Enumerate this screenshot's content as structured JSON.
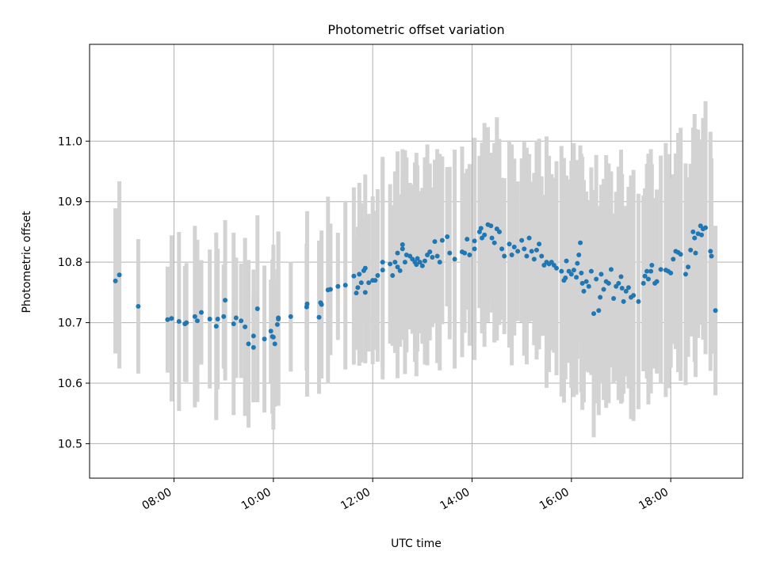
{
  "chart_data": {
    "type": "scatter",
    "title": "Photometric offset variation",
    "xlabel": "UTC time",
    "ylabel": "Photometric offset",
    "x_unit": "hours UTC",
    "xlim": [
      6.3,
      19.45
    ],
    "ylim": [
      10.443,
      11.16
    ],
    "x_ticks": [
      {
        "value": 8,
        "label": "08:00"
      },
      {
        "value": 10,
        "label": "10:00"
      },
      {
        "value": 12,
        "label": "12:00"
      },
      {
        "value": 14,
        "label": "14:00"
      },
      {
        "value": 16,
        "label": "16:00"
      },
      {
        "value": 18,
        "label": "18:00"
      }
    ],
    "y_ticks": [
      {
        "value": 10.5,
        "label": "10.5"
      },
      {
        "value": 10.6,
        "label": "10.6"
      },
      {
        "value": 10.7,
        "label": "10.7"
      },
      {
        "value": 10.8,
        "label": "10.8"
      },
      {
        "value": 10.9,
        "label": "10.9"
      },
      {
        "value": 11.0,
        "label": "11.0"
      }
    ],
    "grid": true,
    "colors": {
      "points": "#1f77b4",
      "errorbars": "#d3d3d3",
      "grid": "#b0b0b0"
    },
    "series": [
      {
        "points": [
          [
            6.82,
            10.769
          ],
          [
            6.9,
            10.779
          ],
          [
            7.28,
            10.727
          ],
          [
            7.87,
            10.705
          ],
          [
            7.95,
            10.707
          ],
          [
            8.1,
            10.702
          ],
          [
            8.22,
            10.698
          ],
          [
            8.25,
            10.7
          ],
          [
            8.42,
            10.71
          ],
          [
            8.47,
            10.703
          ],
          [
            8.55,
            10.717
          ],
          [
            8.72,
            10.706
          ],
          [
            8.85,
            10.694
          ],
          [
            8.88,
            10.706
          ],
          [
            9.0,
            10.71
          ],
          [
            9.03,
            10.737
          ],
          [
            9.2,
            10.698
          ],
          [
            9.25,
            10.708
          ],
          [
            9.35,
            10.703
          ],
          [
            9.43,
            10.693
          ],
          [
            9.5,
            10.665
          ],
          [
            9.6,
            10.659
          ],
          [
            9.6,
            10.678
          ],
          [
            9.68,
            10.723
          ],
          [
            9.82,
            10.673
          ],
          [
            9.95,
            10.686
          ],
          [
            9.98,
            10.677
          ],
          [
            10.0,
            10.676
          ],
          [
            10.03,
            10.665
          ],
          [
            10.08,
            10.697
          ],
          [
            10.1,
            10.706
          ],
          [
            10.1,
            10.708
          ],
          [
            10.35,
            10.71
          ],
          [
            10.67,
            10.726
          ],
          [
            10.68,
            10.731
          ],
          [
            10.92,
            10.709
          ],
          [
            10.95,
            10.733
          ],
          [
            10.97,
            10.73
          ],
          [
            11.1,
            10.754
          ],
          [
            11.15,
            10.755
          ],
          [
            11.3,
            10.76
          ],
          [
            11.45,
            10.762
          ],
          [
            11.62,
            10.777
          ],
          [
            11.67,
            10.749
          ],
          [
            11.7,
            10.758
          ],
          [
            11.73,
            10.78
          ],
          [
            11.77,
            10.766
          ],
          [
            11.82,
            10.786
          ],
          [
            11.85,
            10.75
          ],
          [
            11.85,
            10.79
          ],
          [
            11.92,
            10.766
          ],
          [
            12.0,
            10.77
          ],
          [
            12.05,
            10.77
          ],
          [
            12.1,
            10.778
          ],
          [
            12.2,
            10.787
          ],
          [
            12.2,
            10.8
          ],
          [
            12.35,
            10.797
          ],
          [
            12.4,
            10.778
          ],
          [
            12.45,
            10.8
          ],
          [
            12.5,
            10.792
          ],
          [
            12.5,
            10.815
          ],
          [
            12.55,
            10.786
          ],
          [
            12.6,
            10.822
          ],
          [
            12.6,
            10.829
          ],
          [
            12.65,
            10.8
          ],
          [
            12.68,
            10.812
          ],
          [
            12.75,
            10.81
          ],
          [
            12.8,
            10.805
          ],
          [
            12.85,
            10.8
          ],
          [
            12.88,
            10.796
          ],
          [
            12.9,
            10.806
          ],
          [
            12.95,
            10.8
          ],
          [
            13.0,
            10.794
          ],
          [
            13.05,
            10.802
          ],
          [
            13.1,
            10.812
          ],
          [
            13.15,
            10.817
          ],
          [
            13.2,
            10.808
          ],
          [
            13.25,
            10.834
          ],
          [
            13.3,
            10.81
          ],
          [
            13.35,
            10.8
          ],
          [
            13.4,
            10.836
          ],
          [
            13.5,
            10.842
          ],
          [
            13.55,
            10.815
          ],
          [
            13.65,
            10.805
          ],
          [
            13.8,
            10.817
          ],
          [
            13.85,
            10.815
          ],
          [
            13.9,
            10.838
          ],
          [
            13.95,
            10.812
          ],
          [
            14.05,
            10.822
          ],
          [
            14.05,
            10.835
          ],
          [
            14.15,
            10.85
          ],
          [
            14.18,
            10.856
          ],
          [
            14.2,
            10.84
          ],
          [
            14.25,
            10.845
          ],
          [
            14.32,
            10.862
          ],
          [
            14.38,
            10.86
          ],
          [
            14.4,
            10.84
          ],
          [
            14.45,
            10.832
          ],
          [
            14.5,
            10.855
          ],
          [
            14.55,
            10.85
          ],
          [
            14.6,
            10.822
          ],
          [
            14.65,
            10.81
          ],
          [
            14.75,
            10.83
          ],
          [
            14.8,
            10.812
          ],
          [
            14.85,
            10.825
          ],
          [
            14.92,
            10.818
          ],
          [
            15.0,
            10.836
          ],
          [
            15.05,
            10.822
          ],
          [
            15.1,
            10.81
          ],
          [
            15.15,
            10.84
          ],
          [
            15.2,
            10.818
          ],
          [
            15.25,
            10.805
          ],
          [
            15.3,
            10.82
          ],
          [
            15.35,
            10.83
          ],
          [
            15.4,
            10.81
          ],
          [
            15.45,
            10.795
          ],
          [
            15.5,
            10.8
          ],
          [
            15.55,
            10.797
          ],
          [
            15.6,
            10.8
          ],
          [
            15.65,
            10.795
          ],
          [
            15.7,
            10.79
          ],
          [
            15.8,
            10.785
          ],
          [
            15.85,
            10.77
          ],
          [
            15.88,
            10.774
          ],
          [
            15.9,
            10.802
          ],
          [
            15.95,
            10.785
          ],
          [
            16.0,
            10.78
          ],
          [
            16.05,
            10.787
          ],
          [
            16.1,
            10.775
          ],
          [
            16.12,
            10.798
          ],
          [
            16.15,
            10.812
          ],
          [
            16.18,
            10.832
          ],
          [
            16.2,
            10.782
          ],
          [
            16.22,
            10.765
          ],
          [
            16.25,
            10.752
          ],
          [
            16.3,
            10.768
          ],
          [
            16.35,
            10.76
          ],
          [
            16.4,
            10.785
          ],
          [
            16.45,
            10.715
          ],
          [
            16.5,
            10.772
          ],
          [
            16.55,
            10.72
          ],
          [
            16.58,
            10.742
          ],
          [
            16.6,
            10.78
          ],
          [
            16.65,
            10.755
          ],
          [
            16.7,
            10.768
          ],
          [
            16.75,
            10.765
          ],
          [
            16.8,
            10.788
          ],
          [
            16.85,
            10.74
          ],
          [
            16.9,
            10.76
          ],
          [
            16.95,
            10.765
          ],
          [
            17.0,
            10.776
          ],
          [
            17.02,
            10.757
          ],
          [
            17.05,
            10.735
          ],
          [
            17.1,
            10.752
          ],
          [
            17.15,
            10.758
          ],
          [
            17.2,
            10.742
          ],
          [
            17.25,
            10.745
          ],
          [
            17.35,
            10.735
          ],
          [
            17.45,
            10.765
          ],
          [
            17.48,
            10.777
          ],
          [
            17.52,
            10.785
          ],
          [
            17.55,
            10.772
          ],
          [
            17.6,
            10.785
          ],
          [
            17.62,
            10.795
          ],
          [
            17.68,
            10.765
          ],
          [
            17.72,
            10.768
          ],
          [
            17.8,
            10.788
          ],
          [
            17.9,
            10.787
          ],
          [
            17.95,
            10.785
          ],
          [
            18.0,
            10.782
          ],
          [
            18.05,
            10.805
          ],
          [
            18.1,
            10.818
          ],
          [
            18.15,
            10.816
          ],
          [
            18.2,
            10.813
          ],
          [
            18.3,
            10.78
          ],
          [
            18.35,
            10.792
          ],
          [
            18.4,
            10.82
          ],
          [
            18.45,
            10.85
          ],
          [
            18.48,
            10.84
          ],
          [
            18.5,
            10.815
          ],
          [
            18.55,
            10.847
          ],
          [
            18.6,
            10.86
          ],
          [
            18.62,
            10.845
          ],
          [
            18.65,
            10.855
          ],
          [
            18.7,
            10.857
          ],
          [
            18.8,
            10.818
          ],
          [
            18.82,
            10.81
          ],
          [
            18.9,
            10.72
          ]
        ]
      }
    ]
  }
}
